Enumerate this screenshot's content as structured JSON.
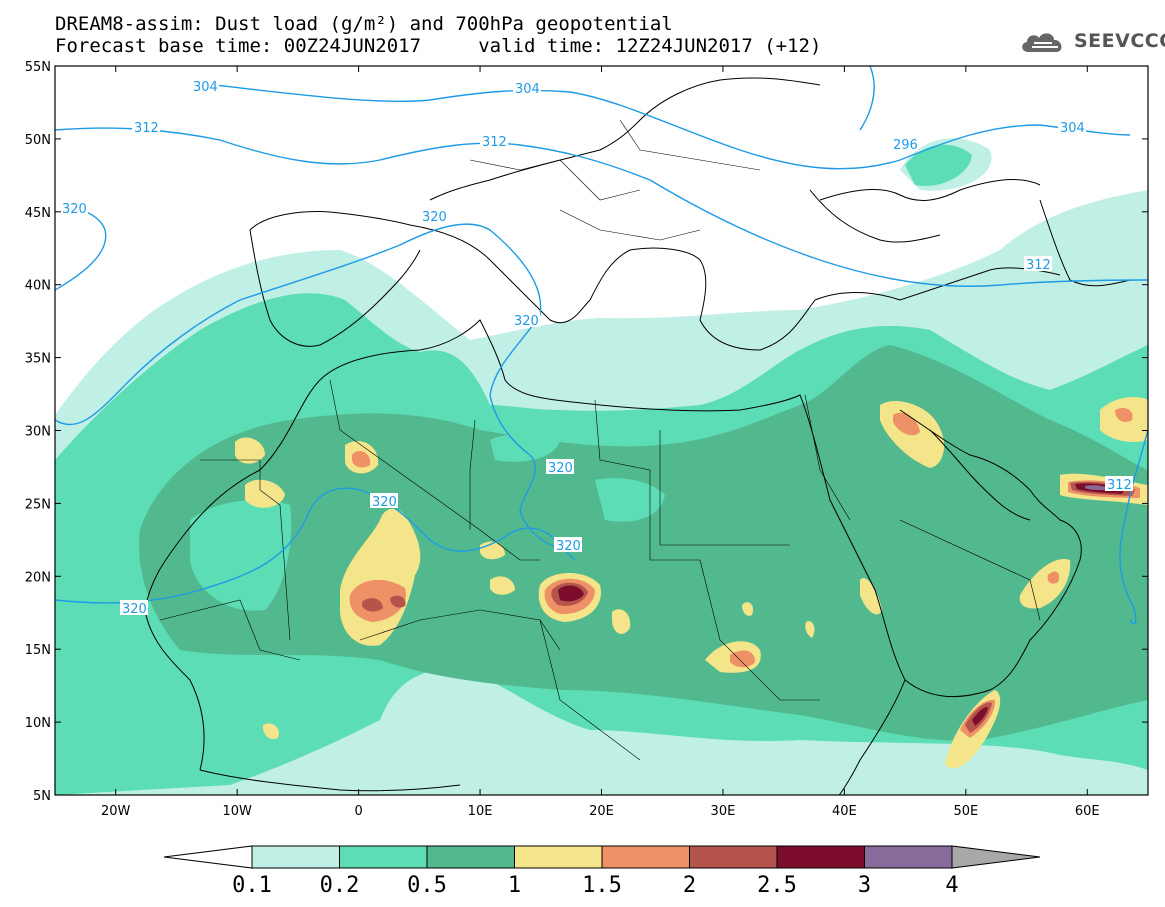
{
  "title": {
    "line1": "DREAM8-assim: Dust load (g/m²) and 700hPa geopotential",
    "line2": "Forecast base time: 00Z24JUN2017     valid time: 12Z24JUN2017 (+12)"
  },
  "logo": {
    "text": "SEEVCCC",
    "icon": "cloud-logo-icon"
  },
  "axes": {
    "lat_labels": [
      "55N",
      "50N",
      "45N",
      "40N",
      "35N",
      "30N",
      "25N",
      "20N",
      "15N",
      "10N",
      "5N"
    ],
    "lon_labels": [
      "20W",
      "10W",
      "0",
      "10E",
      "20E",
      "30E",
      "40E",
      "50E",
      "60E"
    ]
  },
  "contours": {
    "labels": [
      "304",
      "304",
      "312",
      "312",
      "320",
      "320",
      "320",
      "320",
      "320",
      "320",
      "320",
      "296",
      "304",
      "312",
      "312"
    ]
  },
  "colorbar": {
    "labels": [
      "0.1",
      "0.2",
      "0.5",
      "1",
      "1.5",
      "2",
      "2.5",
      "3",
      "4"
    ],
    "colors": [
      "#c0efe6",
      "#5cddb6",
      "#52b98f",
      "#f4e48a",
      "#ee9167",
      "#b4544b",
      "#7d0d2d",
      "#8a6a9a",
      "#a8a8a8"
    ]
  }
}
